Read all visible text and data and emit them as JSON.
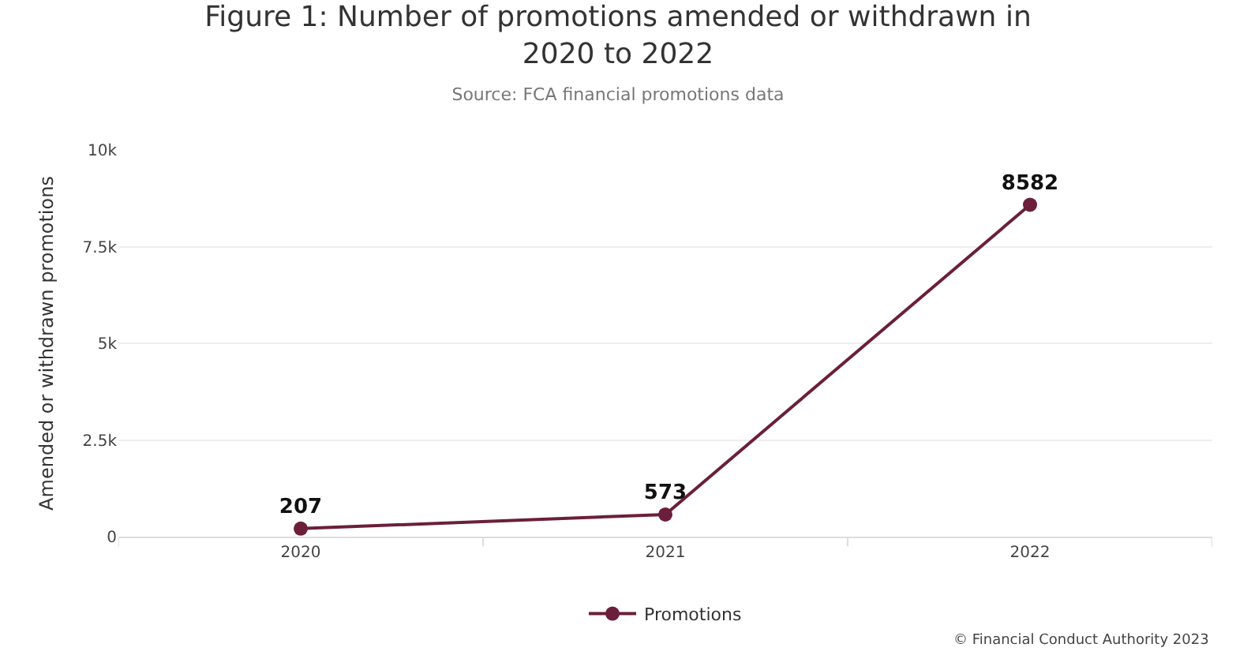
{
  "chart_data": {
    "type": "line",
    "title": "Figure 1: Number of promotions amended or withdrawn in\n2020 to 2022",
    "subtitle": "Source: FCA financial promotions data",
    "ylabel": "Amended or withdrawn promotions",
    "categories": [
      "2020",
      "2021",
      "2022"
    ],
    "series": [
      {
        "name": "Promotions",
        "color": "#6b1f3a",
        "values": [
          207,
          573,
          8582
        ]
      }
    ],
    "ylim": [
      0,
      10000
    ],
    "yticks": [
      {
        "value": 0,
        "label": "0"
      },
      {
        "value": 2500,
        "label": "2.5k"
      },
      {
        "value": 5000,
        "label": "5k"
      },
      {
        "value": 7500,
        "label": "7.5k"
      },
      {
        "value": 10000,
        "label": "10k"
      }
    ],
    "grid": "y",
    "legend": "bottom",
    "marker": "circle",
    "line_style": "solid",
    "data_labels": true,
    "annotations": [
      "© Financial Conduct Authority 2023"
    ]
  }
}
